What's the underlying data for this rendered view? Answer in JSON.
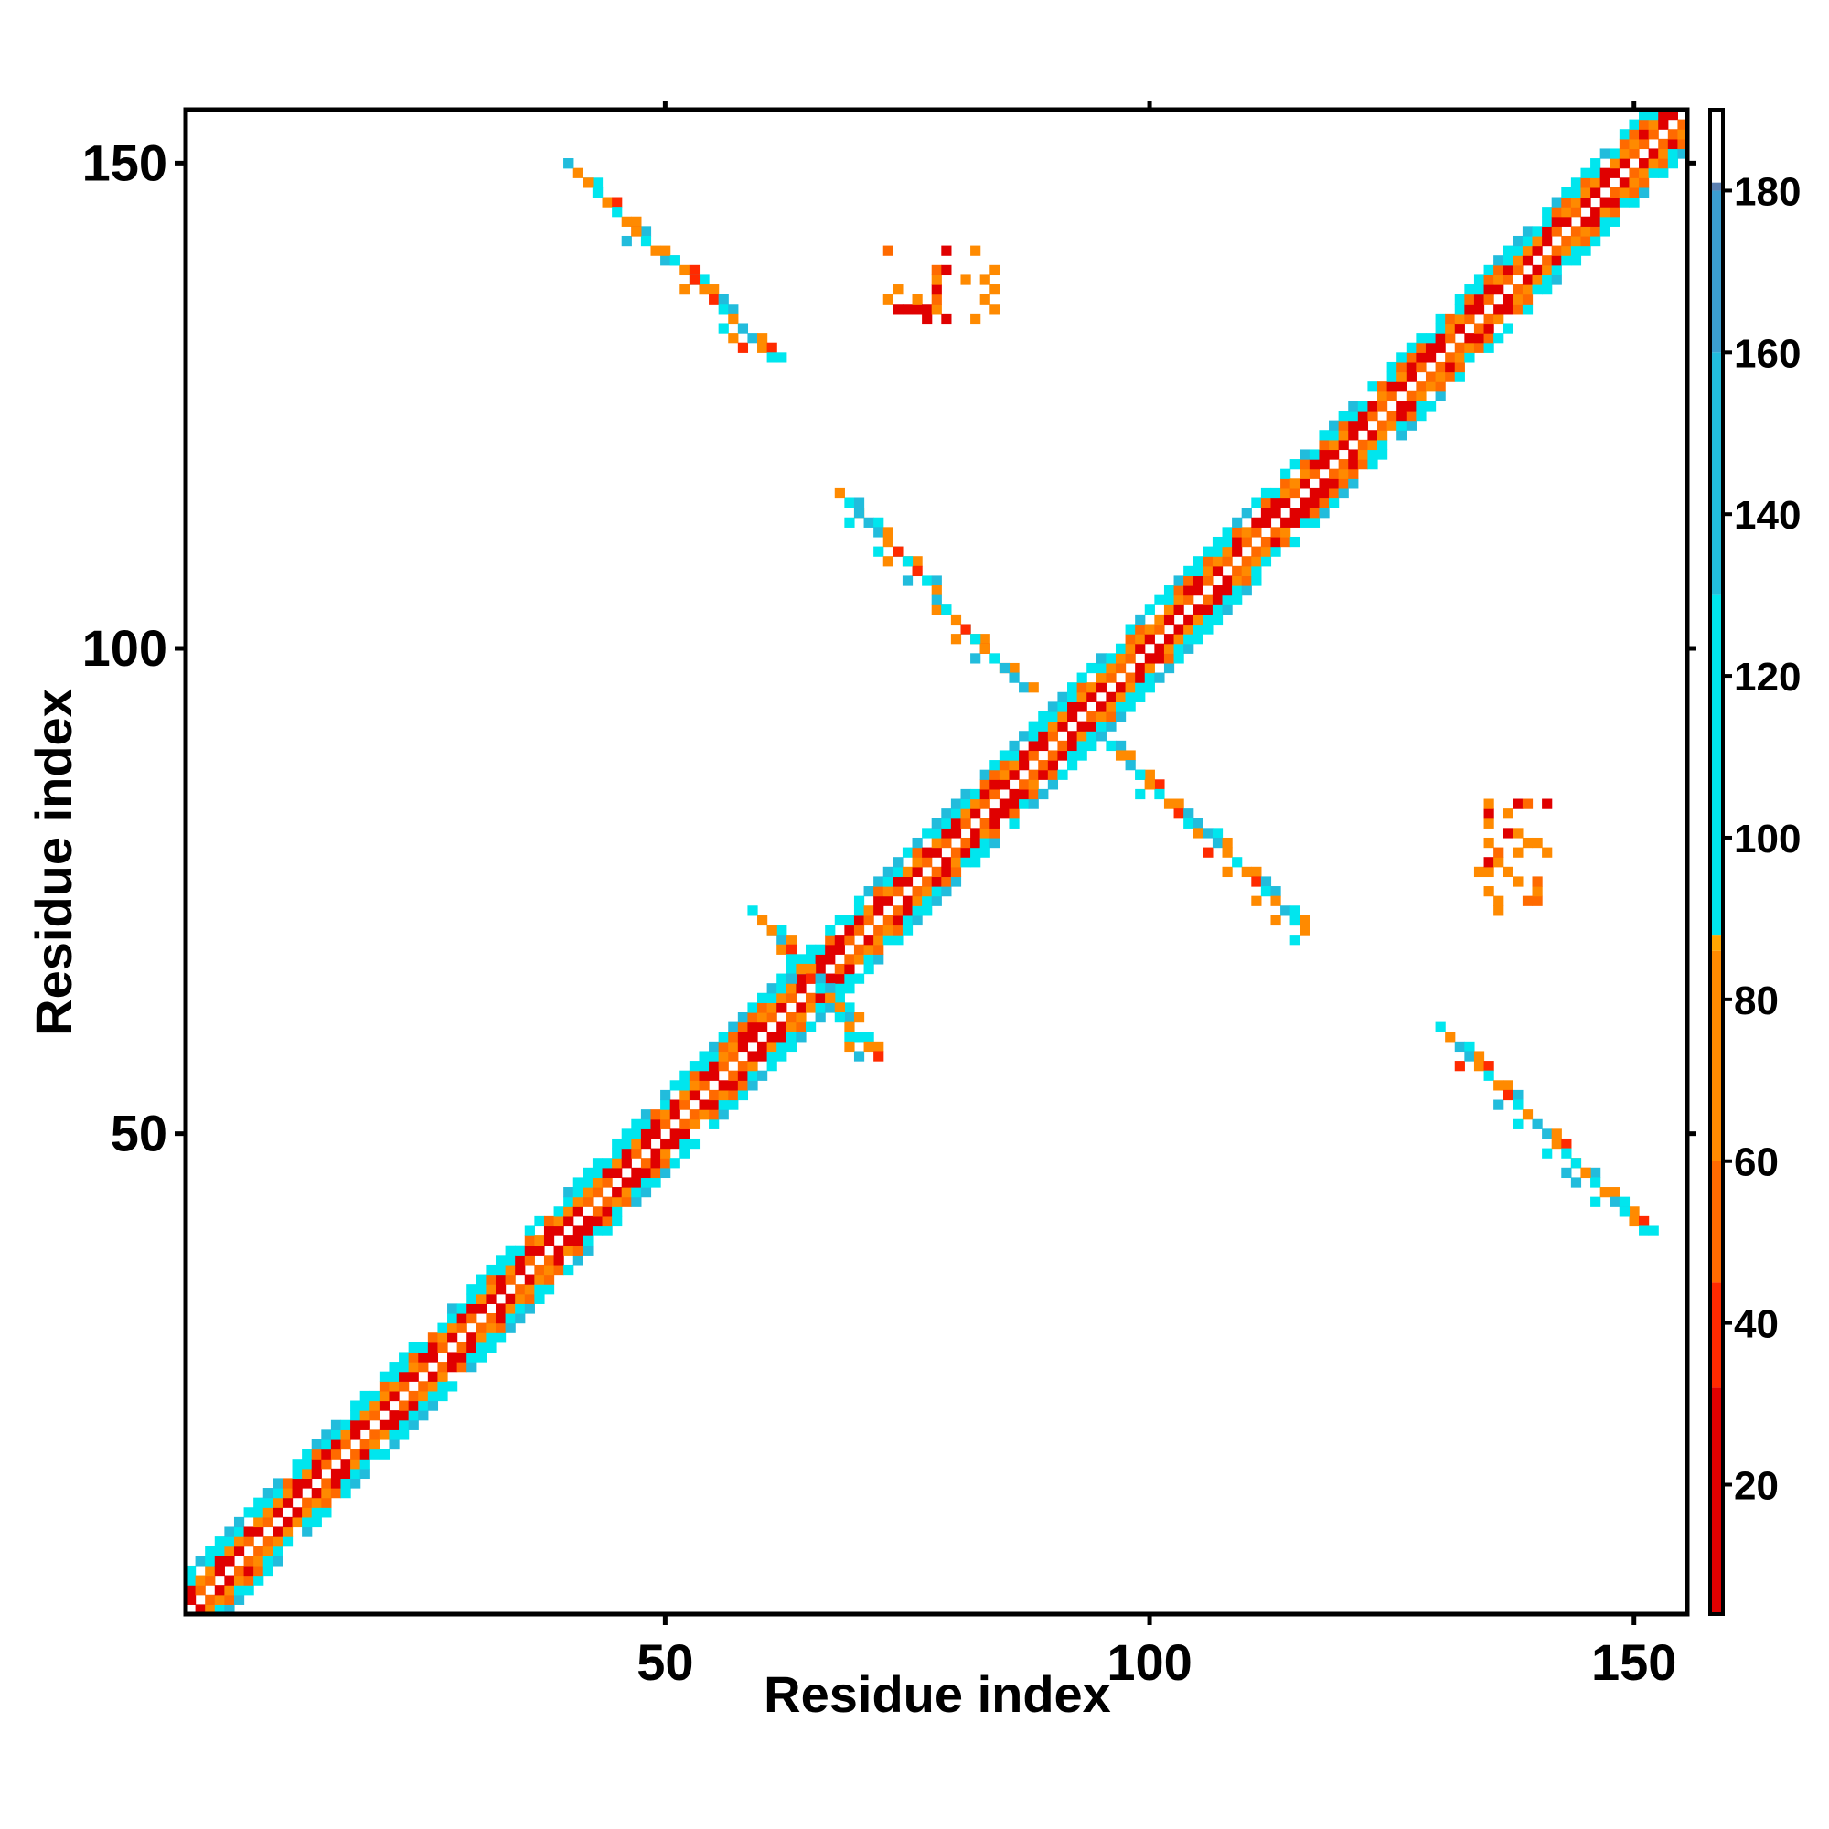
{
  "chart_data": {
    "type": "heatmap",
    "title": "",
    "xlabel": "Residue index",
    "ylabel": "Residue index",
    "x_range": [
      1,
      155
    ],
    "y_range": [
      1,
      155
    ],
    "x_ticks": [
      50,
      100,
      150
    ],
    "y_ticks": [
      50,
      100,
      150
    ],
    "colorbar": {
      "range": [
        4,
        190
      ],
      "ticks": [
        20,
        40,
        60,
        80,
        100,
        120,
        140,
        160,
        180
      ],
      "stops": [
        {
          "value": 4,
          "color": "#e00000"
        },
        {
          "value": 32,
          "color": "#ff2a00"
        },
        {
          "value": 45,
          "color": "#ff6a00"
        },
        {
          "value": 60,
          "color": "#ff8a00"
        },
        {
          "value": 86,
          "color": "#ffa500"
        },
        {
          "value": 88,
          "color": "#00e6ee"
        },
        {
          "value": 130,
          "color": "#22bcdc"
        },
        {
          "value": 160,
          "color": "#3b9ed0"
        },
        {
          "value": 180,
          "color": "#5a7fb0"
        },
        {
          "value": 181,
          "color": "#ffffff"
        }
      ]
    },
    "legend": "colorbar-right",
    "grid": false,
    "diagonal_band": {
      "from": 1,
      "to": 155,
      "half_width": 4
    },
    "contact_segments": [
      {
        "start": [
          40,
          150
        ],
        "end": [
          61,
          130
        ],
        "label_region": "upper-left strand pairing"
      },
      {
        "start": [
          69,
          115
        ],
        "end": [
          87,
          96
        ],
        "label_region": "middle strand pairing"
      },
      {
        "start": [
          96,
          90
        ],
        "end": [
          116,
          71
        ],
        "label_region": "middle strand pairing (mirror)"
      },
      {
        "start": [
          130,
          61
        ],
        "end": [
          151,
          40
        ],
        "label_region": "lower-right strand pairing (mirror)"
      },
      {
        "start": [
          59,
          73
        ],
        "end": [
          72,
          58
        ],
        "label_region": "near-diagonal cross contacts"
      }
    ],
    "contact_clusters": [
      {
        "x_range": [
          73,
          84
        ],
        "y_range": [
          134,
          141
        ]
      },
      {
        "x_range": [
          134,
          141
        ],
        "y_range": [
          73,
          84
        ]
      }
    ]
  }
}
